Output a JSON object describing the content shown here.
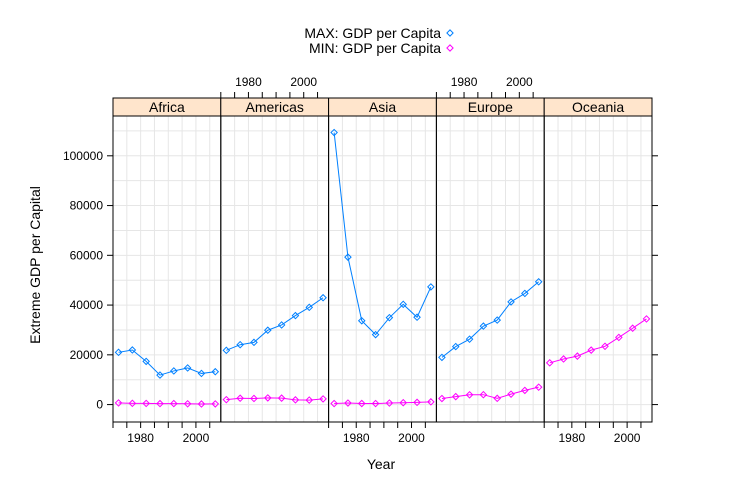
{
  "chart_data": {
    "type": "line",
    "panels": [
      "Africa",
      "Americas",
      "Asia",
      "Europe",
      "Oceania"
    ],
    "x": [
      1972,
      1977,
      1982,
      1987,
      1992,
      1997,
      2002,
      2007
    ],
    "xlabel": "Year",
    "ylabel": "Extreme GDP per Capital",
    "xlim": [
      1970,
      2009
    ],
    "ylim": [
      -7000,
      116000
    ],
    "x_ticks": [
      1980,
      2000
    ],
    "y_ticks": [
      0,
      20000,
      40000,
      60000,
      80000,
      100000
    ],
    "grid": true,
    "legend_position": "top",
    "series": [
      {
        "name": "MAX: GDP per Capita",
        "color": "#0080ff",
        "marker": "diamond",
        "values": {
          "Africa": [
            21011,
            21951,
            17364,
            11864,
            13522,
            14723,
            12522,
            13206
          ],
          "Americas": [
            21806,
            24073,
            25010,
            29884,
            32004,
            35767,
            39097,
            42952
          ],
          "Asia": [
            109348,
            59265,
            33693,
            28118,
            34933,
            40301,
            35110,
            47307
          ],
          "Europe": [
            18965,
            23312,
            26299,
            31541,
            33966,
            41283,
            44684,
            49357
          ],
          "Oceania": null
        }
      },
      {
        "name": "MIN: GDP per Capita",
        "color": "#ff00ff",
        "marker": "diamond",
        "values": {
          "Africa": [
            664,
            502,
            462,
            390,
            411,
            312,
            241,
            278
          ],
          "Americas": [
            1977,
            2550,
            2462,
            2689,
            2598,
            1906,
            1813,
            2292
          ],
          "Asia": [
            422,
            632,
            435,
            418,
            616,
            756,
            900,
            1100
          ],
          "Europe": [
            2442,
            3200,
            3940,
            3974,
            2500,
            4200,
            5700,
            7000
          ],
          "Oceania": [
            16788,
            18334,
            19477,
            21889,
            23425,
            26997,
            30688,
            34435
          ]
        }
      }
    ],
    "colors": {
      "strip_background": "#ffe5cc",
      "grid": "#e6e6e6"
    }
  }
}
